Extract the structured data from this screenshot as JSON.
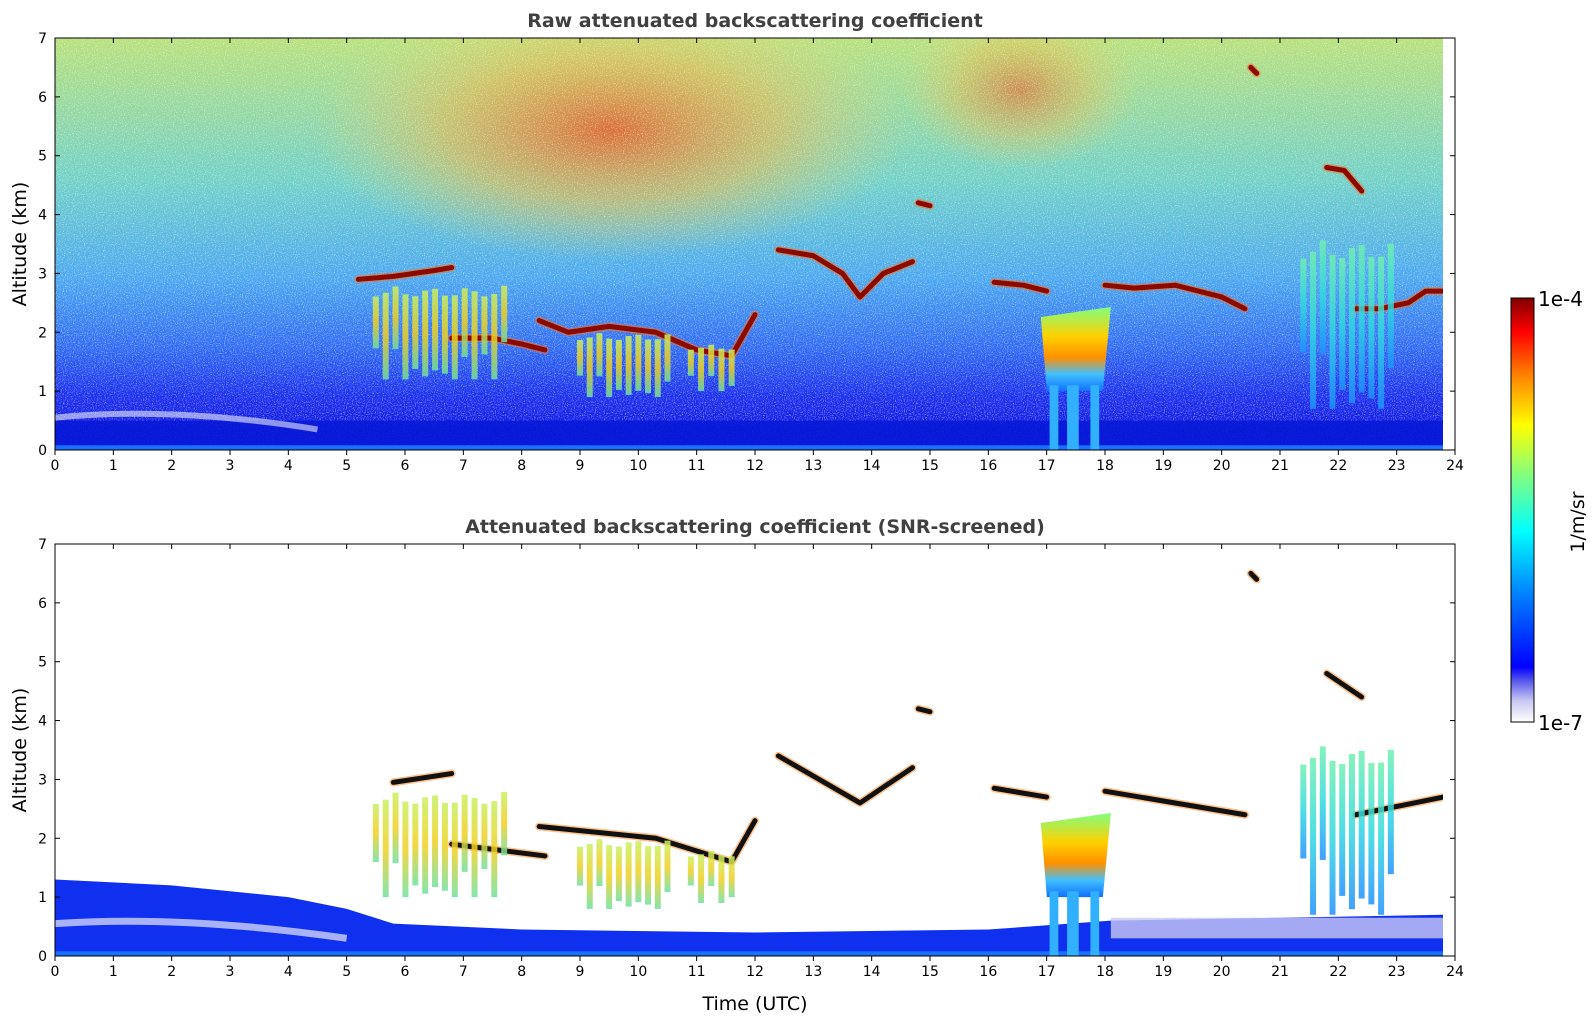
{
  "chart_data": [
    {
      "type": "heatmap",
      "title": "Raw attenuated backscattering coefficient",
      "xlabel": "",
      "ylabel": "Altitude (km)",
      "xlim": [
        0,
        24
      ],
      "ylim": [
        0,
        7
      ],
      "x_ticks": [
        "0",
        "1",
        "2",
        "3",
        "4",
        "5",
        "6",
        "7",
        "8",
        "9",
        "10",
        "11",
        "12",
        "13",
        "14",
        "15",
        "16",
        "17",
        "18",
        "19",
        "20",
        "21",
        "22",
        "23",
        "24"
      ],
      "y_ticks": [
        "0",
        "1",
        "2",
        "3",
        "4",
        "5",
        "6",
        "7"
      ],
      "data_end_time": 23.8,
      "features": [
        {
          "kind": "surface_aerosol_layer",
          "x": [
            0,
            23.8
          ],
          "y_top": 0.5
        },
        {
          "kind": "noise_gradient",
          "description_level": "high noise above 3 km, strongest 6-12 UTC and 15-18 UTC"
        },
        {
          "kind": "cloud_layer",
          "points": [
            [
              5.2,
              2.9
            ],
            [
              5.8,
              2.95
            ],
            [
              6.5,
              3.05
            ],
            [
              6.8,
              3.1
            ]
          ]
        },
        {
          "kind": "cloud_layer",
          "points": [
            [
              6.8,
              1.9
            ],
            [
              7.5,
              1.9
            ],
            [
              8.0,
              1.8
            ],
            [
              8.4,
              1.7
            ]
          ]
        },
        {
          "kind": "cloud_layer",
          "points": [
            [
              8.3,
              2.2
            ],
            [
              8.8,
              2.0
            ],
            [
              9.5,
              2.1
            ],
            [
              10.3,
              2.0
            ],
            [
              11.0,
              1.7
            ],
            [
              11.6,
              1.6
            ],
            [
              12.0,
              2.3
            ]
          ]
        },
        {
          "kind": "cloud_layer",
          "points": [
            [
              12.4,
              3.4
            ],
            [
              13.0,
              3.3
            ],
            [
              13.5,
              3.0
            ],
            [
              13.8,
              2.6
            ],
            [
              14.2,
              3.0
            ],
            [
              14.7,
              3.2
            ]
          ]
        },
        {
          "kind": "cloud_layer",
          "points": [
            [
              14.8,
              4.2
            ],
            [
              15.0,
              4.15
            ]
          ]
        },
        {
          "kind": "cloud_layer",
          "points": [
            [
              16.1,
              2.85
            ],
            [
              16.6,
              2.8
            ],
            [
              17.0,
              2.7
            ]
          ]
        },
        {
          "kind": "cloud_layer",
          "points": [
            [
              18.0,
              2.8
            ],
            [
              18.5,
              2.75
            ],
            [
              19.2,
              2.8
            ],
            [
              20.0,
              2.6
            ],
            [
              20.4,
              2.4
            ]
          ]
        },
        {
          "kind": "cloud_layer",
          "points": [
            [
              21.8,
              4.8
            ],
            [
              22.1,
              4.75
            ],
            [
              22.4,
              4.4
            ]
          ]
        },
        {
          "kind": "cloud_layer",
          "points": [
            [
              22.3,
              2.4
            ],
            [
              22.7,
              2.4
            ],
            [
              23.2,
              2.5
            ],
            [
              23.5,
              2.7
            ],
            [
              23.8,
              2.7
            ]
          ]
        },
        {
          "kind": "cloud_layer",
          "points": [
            [
              20.5,
              6.5
            ],
            [
              20.6,
              6.4
            ]
          ]
        },
        {
          "kind": "precipitation_fall_streaks",
          "x": [
            5.5,
            7.7
          ],
          "y": [
            1.2,
            2.8
          ],
          "peak_level": "yellow-orange"
        },
        {
          "kind": "precipitation_fall_streaks",
          "x": [
            9.0,
            10.5
          ],
          "y": [
            0.9,
            2.0
          ],
          "peak_level": "yellow-orange"
        },
        {
          "kind": "precipitation_fall_streaks",
          "x": [
            10.9,
            11.6
          ],
          "y": [
            1.0,
            1.8
          ],
          "peak_level": "yellow-orange"
        },
        {
          "kind": "precipitation_shaft",
          "x": [
            16.9,
            18.1
          ],
          "y": [
            0.0,
            2.6
          ],
          "peak_level": "orange"
        },
        {
          "kind": "precipitation_fall_streaks",
          "x": [
            21.4,
            22.9
          ],
          "y": [
            0.7,
            3.6
          ],
          "peak_level": "cyan-green"
        }
      ]
    },
    {
      "type": "heatmap",
      "title": "Attenuated backscattering coefficient (SNR-screened)",
      "xlabel": "Time (UTC)",
      "ylabel": "Altitude (km)",
      "xlim": [
        0,
        24
      ],
      "ylim": [
        0,
        7
      ],
      "x_ticks": [
        "0",
        "1",
        "2",
        "3",
        "4",
        "5",
        "6",
        "7",
        "8",
        "9",
        "10",
        "11",
        "12",
        "13",
        "14",
        "15",
        "16",
        "17",
        "18",
        "19",
        "20",
        "21",
        "22",
        "23",
        "24"
      ],
      "y_ticks": [
        "0",
        "1",
        "2",
        "3",
        "4",
        "5",
        "6",
        "7"
      ],
      "data_end_time": 23.8,
      "screening": "pixels below SNR threshold masked white; saturated cloud pixels black",
      "features": [
        {
          "kind": "boundary_layer",
          "points": [
            [
              0,
              1.3
            ],
            [
              2,
              1.2
            ],
            [
              4,
              1.0
            ],
            [
              5,
              0.8
            ],
            [
              5.8,
              0.55
            ],
            [
              8,
              0.45
            ],
            [
              12,
              0.4
            ],
            [
              16,
              0.45
            ],
            [
              18.1,
              0.6
            ],
            [
              21,
              0.65
            ],
            [
              23.8,
              0.7
            ]
          ]
        },
        {
          "kind": "cloud_layer",
          "points": [
            [
              5.8,
              2.95
            ],
            [
              6.8,
              3.1
            ]
          ]
        },
        {
          "kind": "cloud_layer",
          "points": [
            [
              6.8,
              1.9
            ],
            [
              8.4,
              1.7
            ]
          ]
        },
        {
          "kind": "cloud_layer",
          "points": [
            [
              8.3,
              2.2
            ],
            [
              10.3,
              2.0
            ],
            [
              11.6,
              1.6
            ],
            [
              12.0,
              2.3
            ]
          ]
        },
        {
          "kind": "cloud_layer",
          "points": [
            [
              12.4,
              3.4
            ],
            [
              13.8,
              2.6
            ],
            [
              14.7,
              3.2
            ]
          ]
        },
        {
          "kind": "cloud_layer",
          "points": [
            [
              14.8,
              4.2
            ],
            [
              15.0,
              4.15
            ]
          ]
        },
        {
          "kind": "cloud_layer",
          "points": [
            [
              16.1,
              2.85
            ],
            [
              17.0,
              2.7
            ]
          ]
        },
        {
          "kind": "cloud_layer",
          "points": [
            [
              18.0,
              2.8
            ],
            [
              20.4,
              2.4
            ]
          ]
        },
        {
          "kind": "cloud_layer",
          "points": [
            [
              21.8,
              4.8
            ],
            [
              22.4,
              4.4
            ]
          ]
        },
        {
          "kind": "cloud_layer",
          "points": [
            [
              22.3,
              2.4
            ],
            [
              23.8,
              2.7
            ]
          ]
        },
        {
          "kind": "cloud_layer",
          "points": [
            [
              20.5,
              6.5
            ],
            [
              20.6,
              6.4
            ]
          ]
        },
        {
          "kind": "precipitation_fall_streaks",
          "x": [
            5.5,
            7.7
          ],
          "y": [
            1.0,
            2.8
          ]
        },
        {
          "kind": "precipitation_fall_streaks",
          "x": [
            9.0,
            10.5
          ],
          "y": [
            0.8,
            2.0
          ]
        },
        {
          "kind": "precipitation_fall_streaks",
          "x": [
            10.9,
            11.6
          ],
          "y": [
            0.9,
            1.8
          ]
        },
        {
          "kind": "precipitation_shaft",
          "x": [
            16.9,
            18.1
          ],
          "y": [
            0.0,
            2.6
          ]
        },
        {
          "kind": "precipitation_fall_streaks",
          "x": [
            21.4,
            22.9
          ],
          "y": [
            0.7,
            3.6
          ]
        }
      ]
    }
  ],
  "colorbar": {
    "label": "1/m/sr",
    "min_label": "1e-7",
    "max_label": "1e-4",
    "scale": "log",
    "colormap": "jet",
    "low_end_colors": [
      "#ffffff",
      "#d8d8f4",
      "#a8a8ee",
      "#6a6ae8"
    ],
    "jet_stops": [
      "#00008f",
      "#0000ff",
      "#0080ff",
      "#00ffff",
      "#80ff80",
      "#ffff00",
      "#ff8000",
      "#ff0000",
      "#800000"
    ]
  }
}
